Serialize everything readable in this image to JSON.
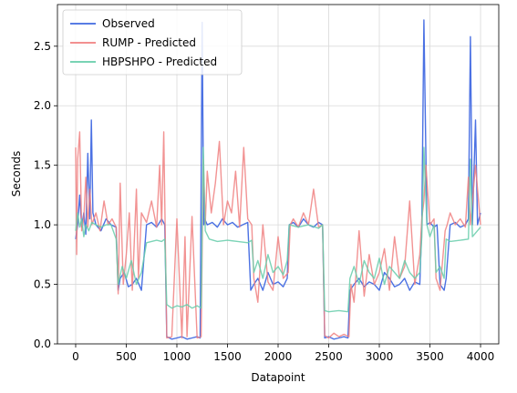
{
  "chart_data": {
    "type": "line",
    "xlabel": "Datapoint",
    "ylabel": "Seconds",
    "xlim": [
      -180,
      4180
    ],
    "ylim": [
      0,
      2.85
    ],
    "xticks": [
      0,
      500,
      1000,
      1500,
      2000,
      2500,
      3000,
      3500,
      4000
    ],
    "yticks": [
      0.0,
      0.5,
      1.0,
      1.5,
      2.0,
      2.5
    ],
    "ytick_labels": [
      "0.0",
      "0.5",
      "1.0",
      "1.5",
      "2.0",
      "2.5"
    ],
    "grid": true,
    "legend_position": "top-left",
    "series": [
      {
        "name": "Observed",
        "color": "#4169e1",
        "x": [
          0,
          20,
          40,
          60,
          80,
          100,
          120,
          140,
          155,
          170,
          200,
          250,
          300,
          350,
          400,
          420,
          440,
          480,
          520,
          560,
          600,
          650,
          700,
          750,
          800,
          850,
          880,
          900,
          950,
          1000,
          1050,
          1100,
          1150,
          1200,
          1230,
          1250,
          1265,
          1275,
          1300,
          1350,
          1400,
          1450,
          1500,
          1550,
          1600,
          1650,
          1700,
          1730,
          1760,
          1800,
          1850,
          1900,
          1950,
          2000,
          2050,
          2090,
          2110,
          2150,
          2200,
          2250,
          2300,
          2350,
          2400,
          2440,
          2460,
          2500,
          2550,
          2600,
          2650,
          2690,
          2710,
          2750,
          2800,
          2850,
          2900,
          2950,
          3000,
          3050,
          3100,
          3150,
          3200,
          3250,
          3300,
          3350,
          3400,
          3420,
          3440,
          3470,
          3500,
          3540,
          3570,
          3600,
          3640,
          3660,
          3700,
          3750,
          3800,
          3850,
          3880,
          3900,
          3920,
          3950,
          3970,
          4000
        ],
        "y": [
          0.88,
          1.0,
          1.25,
          0.98,
          1.1,
          0.92,
          1.6,
          1.05,
          1.88,
          1.1,
          1.0,
          0.95,
          1.05,
          1.0,
          0.98,
          0.45,
          0.55,
          0.6,
          0.48,
          0.5,
          0.55,
          0.45,
          1.0,
          1.02,
          0.98,
          1.05,
          1.0,
          0.06,
          0.04,
          0.05,
          0.06,
          0.04,
          0.05,
          0.06,
          0.05,
          2.7,
          1.0,
          1.05,
          1.0,
          1.02,
          0.98,
          1.05,
          1.0,
          1.02,
          0.98,
          1.0,
          1.02,
          0.45,
          0.5,
          0.55,
          0.45,
          0.6,
          0.5,
          0.52,
          0.48,
          0.55,
          1.0,
          1.02,
          0.98,
          1.05,
          1.0,
          0.98,
          1.02,
          1.0,
          0.05,
          0.06,
          0.04,
          0.05,
          0.06,
          0.05,
          0.45,
          0.5,
          0.55,
          0.48,
          0.52,
          0.5,
          0.45,
          0.6,
          0.55,
          0.48,
          0.5,
          0.55,
          0.45,
          0.52,
          0.5,
          1.0,
          2.72,
          1.0,
          1.02,
          0.98,
          1.0,
          0.5,
          0.45,
          0.55,
          1.0,
          1.02,
          0.98,
          1.0,
          1.05,
          2.58,
          1.0,
          1.88,
          1.0,
          1.1
        ]
      },
      {
        "name": "RUMP - Predicted",
        "color": "#f08080",
        "x": [
          0,
          10,
          20,
          40,
          60,
          80,
          100,
          120,
          140,
          160,
          200,
          240,
          280,
          320,
          360,
          400,
          420,
          440,
          470,
          500,
          530,
          560,
          600,
          620,
          650,
          700,
          750,
          800,
          830,
          850,
          870,
          900,
          950,
          1000,
          1050,
          1080,
          1100,
          1150,
          1200,
          1240,
          1260,
          1280,
          1300,
          1340,
          1380,
          1420,
          1460,
          1500,
          1540,
          1580,
          1620,
          1660,
          1700,
          1740,
          1760,
          1800,
          1850,
          1900,
          1950,
          2000,
          2050,
          2100,
          2120,
          2150,
          2200,
          2250,
          2300,
          2350,
          2400,
          2440,
          2460,
          2500,
          2550,
          2600,
          2650,
          2700,
          2720,
          2750,
          2800,
          2850,
          2900,
          2950,
          3000,
          3050,
          3100,
          3150,
          3200,
          3250,
          3300,
          3350,
          3400,
          3420,
          3440,
          3460,
          3500,
          3540,
          3560,
          3600,
          3650,
          3670,
          3700,
          3750,
          3800,
          3850,
          3880,
          3900,
          3950,
          4000
        ],
        "y": [
          1.65,
          0.75,
          1.55,
          1.78,
          0.95,
          1.05,
          1.4,
          0.98,
          1.3,
          1.0,
          1.1,
          0.95,
          1.2,
          1.0,
          1.05,
          0.98,
          0.42,
          1.35,
          0.5,
          0.75,
          1.1,
          0.45,
          1.3,
          0.55,
          1.1,
          1.02,
          1.2,
          0.98,
          1.5,
          1.0,
          1.78,
          0.05,
          0.06,
          1.05,
          0.05,
          0.9,
          0.06,
          1.07,
          0.05,
          0.06,
          1.55,
          1.0,
          1.45,
          1.1,
          1.35,
          1.7,
          1.0,
          1.2,
          1.1,
          1.45,
          0.98,
          1.65,
          1.05,
          1.0,
          0.55,
          0.35,
          1.0,
          0.52,
          0.45,
          0.9,
          0.55,
          0.6,
          1.0,
          1.05,
          0.98,
          1.1,
          1.0,
          1.3,
          0.98,
          1.0,
          0.07,
          0.05,
          0.09,
          0.06,
          0.08,
          0.06,
          0.5,
          0.35,
          0.95,
          0.4,
          0.75,
          0.5,
          0.6,
          0.8,
          0.45,
          0.9,
          0.55,
          0.65,
          1.2,
          0.5,
          0.75,
          1.05,
          1.2,
          1.5,
          1.0,
          1.05,
          0.55,
          0.45,
          0.95,
          1.0,
          1.1,
          1.0,
          1.05,
          0.98,
          1.4,
          1.0,
          1.5,
          1.0
        ]
      },
      {
        "name": "HBPSHPO - Predicted",
        "color": "#66cdaa",
        "x": [
          0,
          20,
          40,
          60,
          80,
          100,
          130,
          160,
          200,
          250,
          300,
          350,
          400,
          420,
          460,
          500,
          550,
          600,
          650,
          700,
          750,
          800,
          850,
          880,
          900,
          950,
          1000,
          1050,
          1100,
          1150,
          1200,
          1240,
          1260,
          1280,
          1320,
          1400,
          1500,
          1600,
          1700,
          1740,
          1760,
          1800,
          1850,
          1900,
          1950,
          2000,
          2050,
          2090,
          2110,
          2200,
          2300,
          2400,
          2440,
          2460,
          2500,
          2600,
          2690,
          2710,
          2750,
          2800,
          2850,
          2900,
          2950,
          3000,
          3050,
          3100,
          3150,
          3200,
          3250,
          3300,
          3350,
          3400,
          3420,
          3440,
          3470,
          3500,
          3540,
          3560,
          3600,
          3640,
          3660,
          3700,
          3800,
          3880,
          3900,
          3920,
          4000
        ],
        "y": [
          0.95,
          1.1,
          0.98,
          1.05,
          0.9,
          1.0,
          0.95,
          1.02,
          1.0,
          0.98,
          1.0,
          1.0,
          0.88,
          0.5,
          0.65,
          0.55,
          0.7,
          0.5,
          0.6,
          0.85,
          0.86,
          0.87,
          0.86,
          0.88,
          0.33,
          0.3,
          0.32,
          0.31,
          0.33,
          0.3,
          0.32,
          0.3,
          1.65,
          0.95,
          0.88,
          0.86,
          0.87,
          0.86,
          0.85,
          0.87,
          0.6,
          0.7,
          0.55,
          0.75,
          0.6,
          0.65,
          0.58,
          0.7,
          1.0,
          0.98,
          1.0,
          0.97,
          1.0,
          0.28,
          0.27,
          0.28,
          0.27,
          0.55,
          0.65,
          0.5,
          0.7,
          0.6,
          0.55,
          0.72,
          0.5,
          0.65,
          0.6,
          0.55,
          0.7,
          0.6,
          0.55,
          0.6,
          0.9,
          1.65,
          1.0,
          0.9,
          1.0,
          0.6,
          0.65,
          0.55,
          0.88,
          0.86,
          0.87,
          0.88,
          1.55,
          0.9,
          0.98
        ]
      }
    ]
  }
}
